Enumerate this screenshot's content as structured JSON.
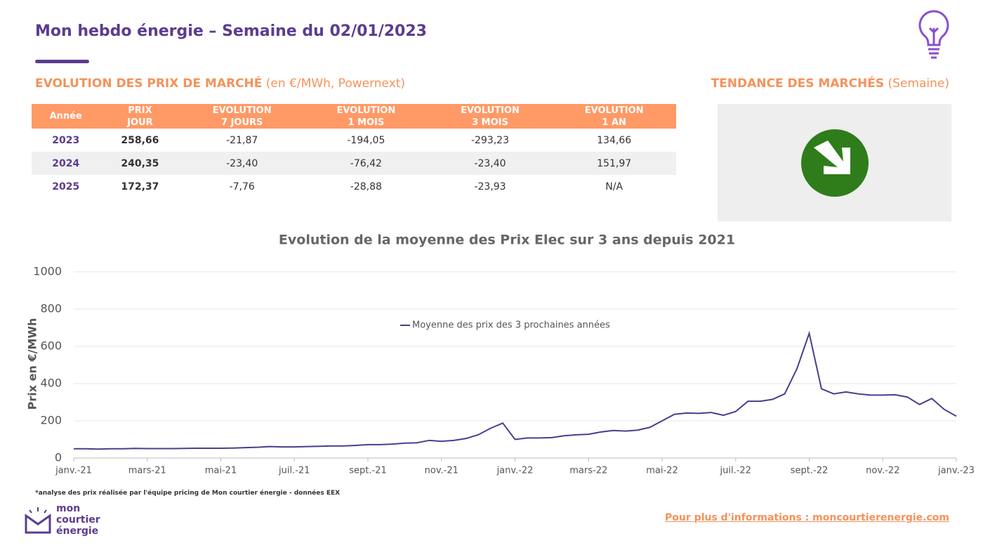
{
  "header": {
    "title": "Mon hebdo énergie – Semaine du 02/01/2023"
  },
  "market": {
    "heading": "EVOLUTION DES PRIX DE MARCHÉ",
    "subheading": "(en €/MWh, Powernext)"
  },
  "trend": {
    "heading": "TENDANCE DES MARCHÉS",
    "subheading": "(Semaine)"
  },
  "table": {
    "columns": [
      "Année",
      "PRIX\nJOUR",
      "EVOLUTION\n7 JOURS",
      "EVOLUTION\n1 MOIS",
      "EVOLUTION\n3 MOIS",
      "EVOLUTION\n1 AN"
    ],
    "rows": [
      [
        "2023",
        "258,66",
        "-21,87",
        "-194,05",
        "-293,23",
        "134,66"
      ],
      [
        "2024",
        "240,35",
        "-23,40",
        "-76,42",
        "-23,40",
        "151,97"
      ],
      [
        "2025",
        "172,37",
        "-7,76",
        "-28,88",
        "-23,93",
        "N/A"
      ]
    ]
  },
  "chart_data": {
    "type": "line",
    "title": "Evolution de la moyenne des Prix Elec sur 3 ans depuis 2021",
    "y_label": "Prix en €/MWh",
    "categories": [
      "janv.-21",
      null,
      null,
      null,
      null,
      null,
      "mars-21",
      null,
      null,
      null,
      null,
      null,
      "mai-21",
      null,
      null,
      null,
      null,
      null,
      "juil.-21",
      null,
      null,
      null,
      null,
      null,
      "sept.-21",
      null,
      null,
      null,
      null,
      null,
      "nov.-21",
      null,
      null,
      null,
      null,
      null,
      "janv.-22",
      null,
      null,
      null,
      null,
      null,
      "mars-22",
      null,
      null,
      null,
      null,
      null,
      "mai-22",
      null,
      null,
      null,
      null,
      null,
      "juil.-22",
      null,
      null,
      null,
      null,
      null,
      "sept.-22",
      null,
      null,
      null,
      null,
      null,
      "nov.-22",
      null,
      null,
      null,
      null,
      null,
      "janv.-23"
    ],
    "series": [
      {
        "name": "Moyenne des prix des 3 prochaines années",
        "color": "#4b3d8f",
        "values": [
          50,
          50,
          48,
          50,
          50,
          52,
          51,
          51,
          51,
          52,
          53,
          53,
          53,
          54,
          56,
          58,
          62,
          60,
          60,
          62,
          63,
          65,
          65,
          68,
          72,
          72,
          75,
          80,
          82,
          95,
          90,
          95,
          105,
          125,
          160,
          188,
          100,
          108,
          108,
          110,
          120,
          125,
          128,
          140,
          148,
          145,
          150,
          165,
          200,
          235,
          242,
          240,
          245,
          230,
          250,
          305,
          305,
          315,
          345,
          480,
          670,
          372,
          345,
          355,
          345,
          338,
          338,
          340,
          328,
          288,
          320,
          262,
          225
        ]
      }
    ],
    "ylim": [
      0,
      1000
    ],
    "yticks": [
      0,
      200,
      400,
      600,
      800,
      1000
    ],
    "grid": true
  },
  "footer": {
    "note": "*analyse des prix réalisée par l'équipe pricing de Mon courtier énergie -  données EEX",
    "link": "Pour plus d'informations : moncourtierenergie.com",
    "logo": [
      "mon",
      "courtier",
      "énergie"
    ]
  }
}
